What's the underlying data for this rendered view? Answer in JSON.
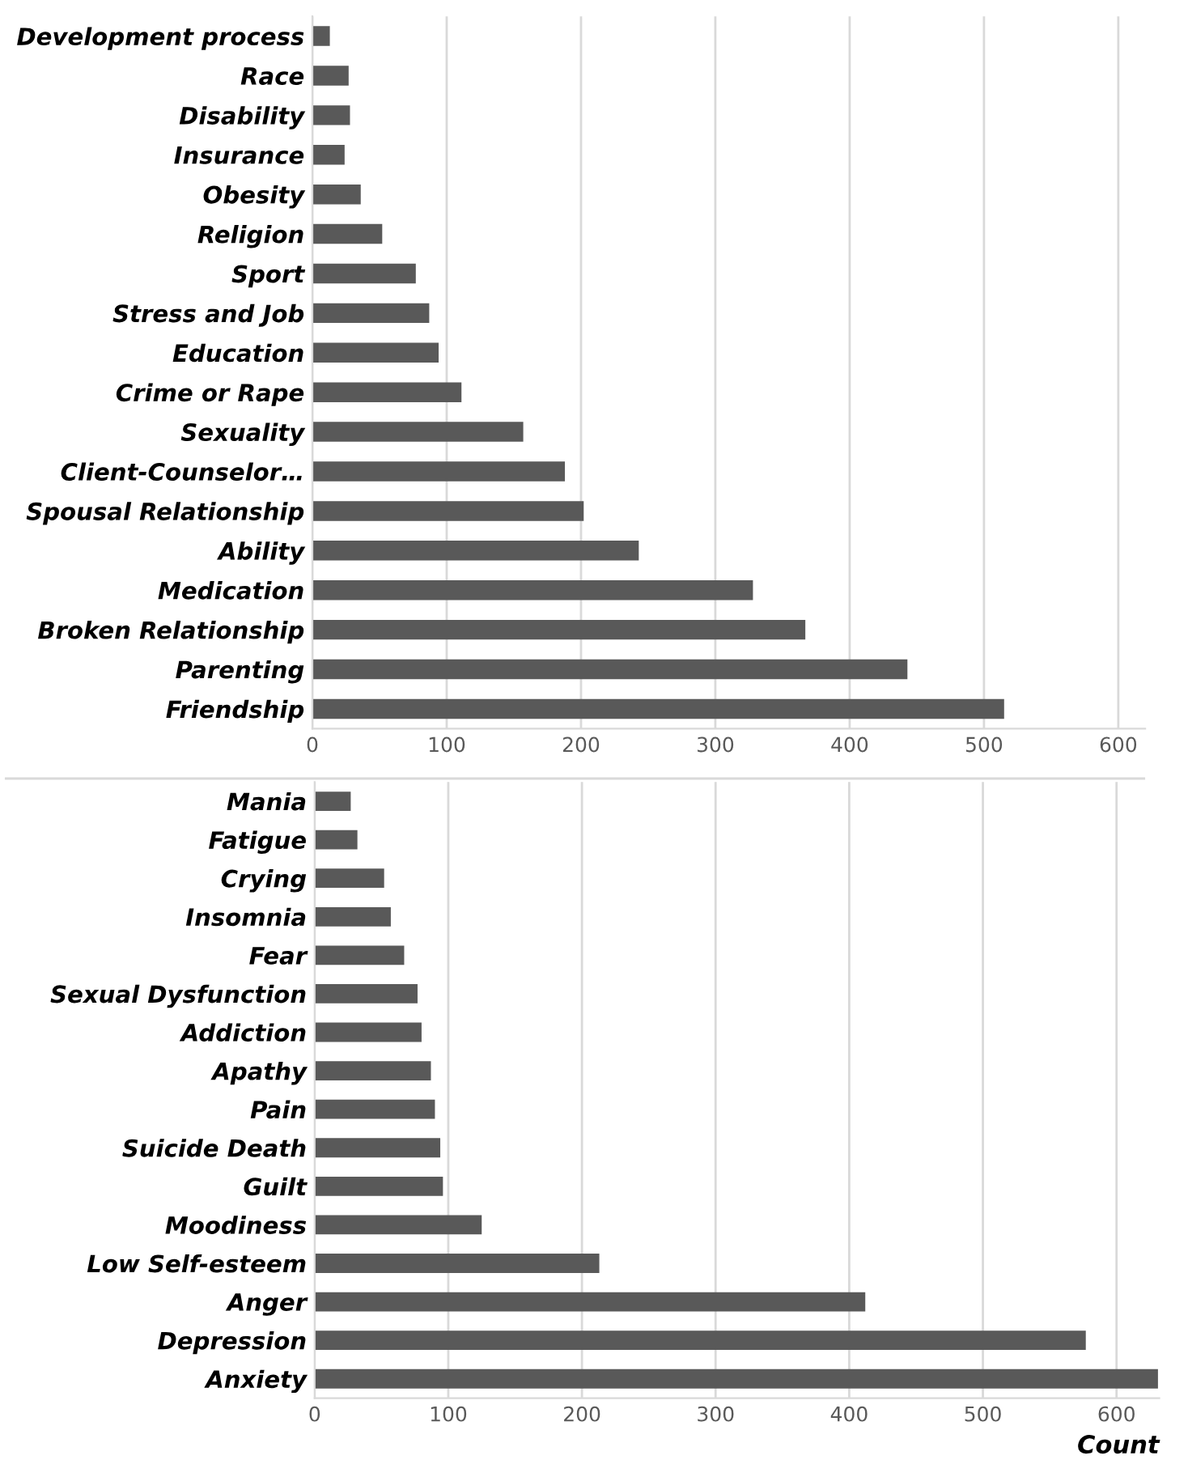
{
  "chart_data": [
    {
      "type": "bar",
      "orientation": "horizontal",
      "categories": [
        "Development process",
        "Race",
        "Disability",
        "Insurance",
        "Obesity",
        "Religion",
        "Sport",
        "Stress and Job",
        "Education",
        "Crime or Rape",
        "Sexuality",
        "Client-Counselor…",
        "Spousal Relationship",
        "Ability",
        "Medication",
        "Broken Relationship",
        "Parenting",
        "Friendship"
      ],
      "values": [
        13,
        27,
        28,
        24,
        36,
        52,
        77,
        87,
        94,
        111,
        157,
        188,
        202,
        243,
        328,
        367,
        443,
        515
      ],
      "color": "#595959",
      "xlim": [
        0,
        620
      ],
      "xticks": [
        0,
        100,
        200,
        300,
        400,
        500,
        600
      ],
      "grid": "x"
    },
    {
      "type": "bar",
      "orientation": "horizontal",
      "categories": [
        "Mania",
        "Fatigue",
        "Crying",
        "Insomnia",
        "Fear",
        "Sexual Dysfunction",
        "Addiction",
        "Apathy",
        "Pain",
        "Suicide Death",
        "Guilt",
        "Moodiness",
        "Low Self-esteem",
        "Anger",
        "Depression",
        "Anxiety"
      ],
      "values": [
        27,
        32,
        52,
        57,
        67,
        77,
        80,
        87,
        90,
        94,
        96,
        125,
        213,
        412,
        577,
        631
      ],
      "color": "#595959",
      "xlim": [
        0,
        632
      ],
      "xticks": [
        0,
        100,
        200,
        300,
        400,
        500,
        600
      ],
      "grid": "x",
      "xlabel": "Count"
    }
  ]
}
